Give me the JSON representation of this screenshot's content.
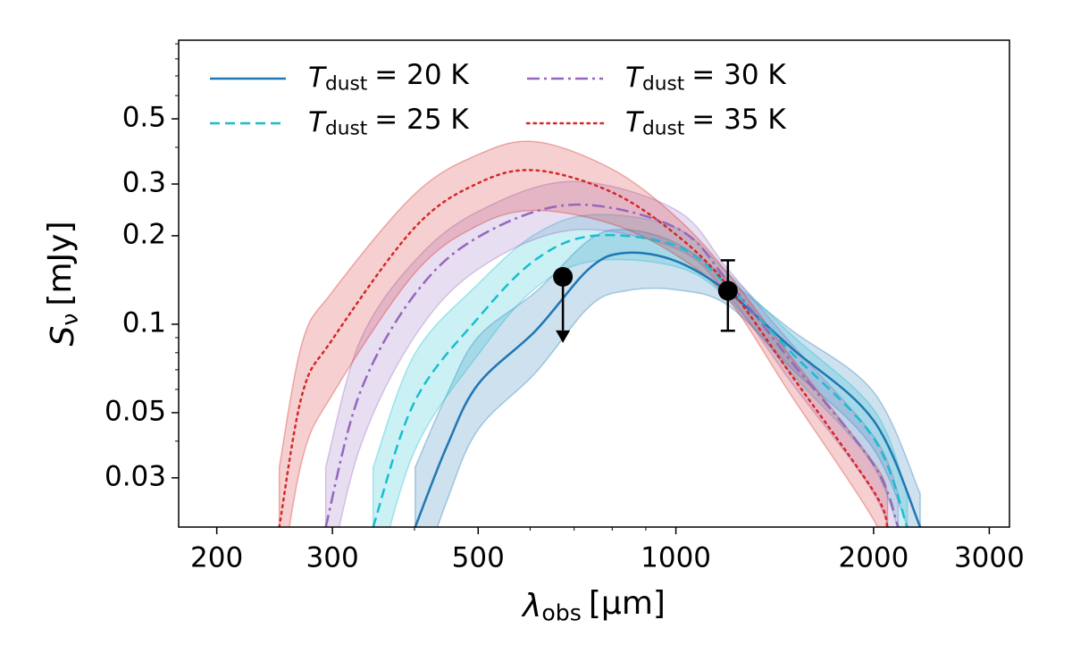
{
  "chart_data": {
    "type": "line",
    "x_label": {
      "symbol": "λ",
      "subscript": "obs",
      "text": "[μm]"
    },
    "y_label": {
      "symbol": "S",
      "subscript": "ν",
      "text": "[mJy]"
    },
    "xlog": true,
    "ylog": true,
    "xlim": [
      175,
      3220
    ],
    "ylim": [
      0.0204,
      0.926
    ],
    "xticks": [
      200,
      300,
      500,
      1000,
      2000,
      3000
    ],
    "xminorticks": [
      400,
      600,
      700,
      800,
      900
    ],
    "yticks": [
      0.03,
      0.05,
      0.1,
      0.2,
      0.3,
      0.5
    ],
    "yminorticks": [
      0.04,
      0.06,
      0.07,
      0.08,
      0.09,
      0.4,
      0.6,
      0.7,
      0.8,
      0.9
    ],
    "legend_loc": "upper left",
    "legend_columns": 2,
    "series": [
      {
        "name": {
          "symbol": "T",
          "subscript": "dust",
          "text": "= 20 K"
        },
        "color": "#1f77b4",
        "style": "solid",
        "x": [
          401,
          448,
          500,
          612,
          739,
          840,
          1000,
          1200,
          1500,
          2000,
          2355
        ],
        "values": [
          0.0204,
          0.0384,
          0.0625,
          0.0952,
          0.155,
          0.175,
          0.164,
          0.129,
          0.083,
          0.047,
          0.0204
        ],
        "upper": [
          0.0326,
          0.0576,
          0.0906,
          0.129,
          0.194,
          0.21,
          0.189,
          0.142,
          0.0955,
          0.0588,
          0.0265
        ],
        "lower": [
          0.0122,
          0.025,
          0.0438,
          0.0685,
          0.115,
          0.13,
          0.131,
          0.116,
          0.0706,
          0.0376,
          0.0153
        ]
      },
      {
        "name": {
          "symbol": "T",
          "subscript": "dust",
          "text": "= 25 K"
        },
        "color": "#17becf",
        "style": "dashed",
        "x": [
          346,
          400,
          500,
          612,
          750,
          1000,
          1200,
          1500,
          2000,
          2250
        ],
        "values": [
          0.0204,
          0.0544,
          0.105,
          0.166,
          0.2,
          0.185,
          0.135,
          0.08,
          0.041,
          0.0204
        ],
        "upper": [
          0.0326,
          0.0789,
          0.137,
          0.203,
          0.236,
          0.213,
          0.149,
          0.092,
          0.0513,
          0.0265
        ],
        "lower": [
          0.0122,
          0.037,
          0.0788,
          0.133,
          0.164,
          0.157,
          0.122,
          0.068,
          0.0328,
          0.0153
        ]
      },
      {
        "name": {
          "symbol": "T",
          "subscript": "dust",
          "text": "= 30 K"
        },
        "color": "#9467bd",
        "style": "dashdot",
        "x": [
          293,
          330,
          400,
          500,
          694,
          1000,
          1200,
          1500,
          2000,
          2180
        ],
        "values": [
          0.0204,
          0.058,
          0.126,
          0.198,
          0.255,
          0.213,
          0.14,
          0.0745,
          0.0333,
          0.0204
        ],
        "upper": [
          0.0326,
          0.087,
          0.164,
          0.242,
          0.306,
          0.245,
          0.154,
          0.0857,
          0.0416,
          0.0265
        ],
        "lower": [
          0.0122,
          0.0377,
          0.0907,
          0.154,
          0.209,
          0.181,
          0.126,
          0.0633,
          0.0266,
          0.0153
        ]
      },
      {
        "name": {
          "symbol": "T",
          "subscript": "dust",
          "text": "= 35 K"
        },
        "color": "#d62728",
        "style": "dotted",
        "x": [
          249,
          270,
          300,
          400,
          500,
          612,
          800,
          1000,
          1200,
          1500,
          2000,
          2100
        ],
        "values": [
          0.0204,
          0.058,
          0.0888,
          0.213,
          0.302,
          0.334,
          0.281,
          0.202,
          0.135,
          0.067,
          0.027,
          0.0204
        ],
        "upper": [
          0.0326,
          0.087,
          0.129,
          0.277,
          0.378,
          0.418,
          0.337,
          0.232,
          0.149,
          0.077,
          0.0338,
          0.0265
        ],
        "lower": [
          0.0122,
          0.0348,
          0.0577,
          0.149,
          0.217,
          0.244,
          0.219,
          0.172,
          0.122,
          0.057,
          0.0216,
          0.0153
        ]
      }
    ],
    "points": [
      {
        "x": 673,
        "y": 0.145,
        "upper_limit": true
      },
      {
        "x": 1200,
        "y": 0.13,
        "yerr": 0.035
      }
    ]
  }
}
